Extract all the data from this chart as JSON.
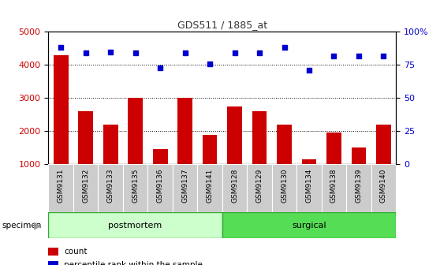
{
  "title": "GDS511 / 1885_at",
  "categories": [
    "GSM9131",
    "GSM9132",
    "GSM9133",
    "GSM9135",
    "GSM9136",
    "GSM9137",
    "GSM9141",
    "GSM9128",
    "GSM9129",
    "GSM9130",
    "GSM9134",
    "GSM9138",
    "GSM9139",
    "GSM9140"
  ],
  "counts": [
    4300,
    2600,
    2200,
    3000,
    1450,
    3000,
    1900,
    2750,
    2600,
    2200,
    1150,
    1950,
    1500,
    2200
  ],
  "percentiles": [
    88,
    84,
    85,
    84,
    73,
    84,
    76,
    84,
    84,
    88,
    71,
    82,
    82,
    82
  ],
  "postmortem_count": 7,
  "surgical_count": 7,
  "ylim_left": [
    1000,
    5000
  ],
  "ylim_right": [
    0,
    100
  ],
  "yticks_left": [
    1000,
    2000,
    3000,
    4000,
    5000
  ],
  "yticks_right": [
    0,
    25,
    50,
    75,
    100
  ],
  "bar_color": "#cc0000",
  "dot_color": "#0000cc",
  "postmortem_color": "#ccffcc",
  "surgical_color": "#55dd55",
  "tick_bg_color": "#cccccc",
  "title_color": "#333333",
  "left_axis_color": "#cc0000",
  "right_axis_color": "#0000cc",
  "legend_count_color": "#cc0000",
  "legend_pct_color": "#0000cc",
  "specimen_arrow_color": "#999999"
}
